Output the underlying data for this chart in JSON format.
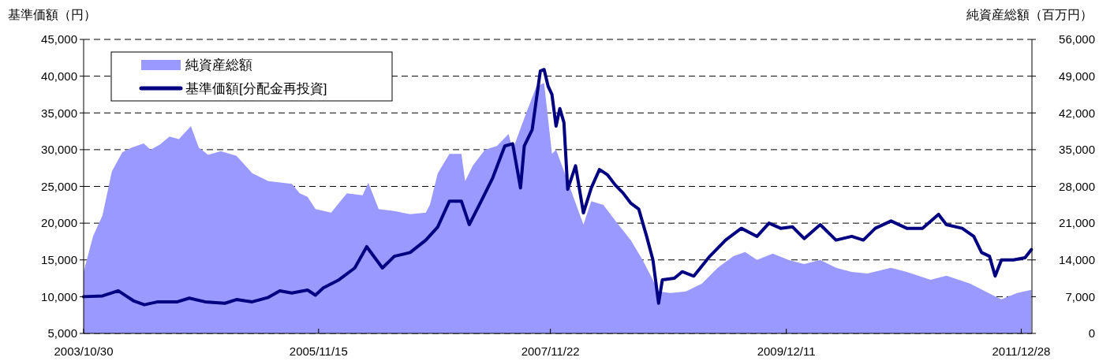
{
  "chart_data": {
    "type": "line",
    "ylabel": "基準価額（円）",
    "y2label": "純資産総額（百万円）",
    "xlim": [
      "2003-10-30",
      "2012-01-31"
    ],
    "xticks": [
      {
        "value": "2003-10-30",
        "label": "2003/10/30"
      },
      {
        "value": "2005-11-15",
        "label": "2005/11/15"
      },
      {
        "value": "2007-11-22",
        "label": "2007/11/22"
      },
      {
        "value": "2009-12-11",
        "label": "2009/12/11"
      },
      {
        "value": "2011-12-28",
        "label": "2011/12/28"
      }
    ],
    "ylim": [
      5000,
      45000
    ],
    "yticks": [
      {
        "value": 5000,
        "label": "5,000"
      },
      {
        "value": 10000,
        "label": "10,000"
      },
      {
        "value": 15000,
        "label": "15,000"
      },
      {
        "value": 20000,
        "label": "20,000"
      },
      {
        "value": 25000,
        "label": "25,000"
      },
      {
        "value": 30000,
        "label": "30,000"
      },
      {
        "value": 35000,
        "label": "35,000"
      },
      {
        "value": 40000,
        "label": "40,000"
      },
      {
        "value": 45000,
        "label": "45,000"
      }
    ],
    "y2lim": [
      0,
      56000
    ],
    "y2ticks": [
      0,
      {
        "value": 7000,
        "label": "7,000"
      },
      {
        "value": 14000,
        "label": "14,000"
      },
      {
        "value": 21000,
        "label": "21,000"
      },
      {
        "value": 28000,
        "label": "28,000"
      },
      {
        "value": 35000,
        "label": "35,000"
      },
      {
        "value": 42000,
        "label": "42,000"
      },
      {
        "value": 49000,
        "label": "49,000"
      },
      {
        "value": 56000,
        "label": "56,000"
      }
    ],
    "grid": "y",
    "legend": "top left",
    "series": [
      {
        "name": "純資産総額",
        "type": "area",
        "axis": "y2",
        "color": "#9999ff",
        "x": [
          "2003-10-30",
          "2003-11-29",
          "2003-12-29",
          "2004-01-28",
          "2004-03-01",
          "2004-03-31",
          "2004-05-08",
          "2004-05-30",
          "2004-06-29",
          "2004-07-29",
          "2004-08-28",
          "2004-10-05",
          "2004-10-30",
          "2004-11-29",
          "2005-01-08",
          "2005-02-27",
          "2005-04-18",
          "2005-06-08",
          "2005-08-22",
          "2005-09-16",
          "2005-10-11",
          "2005-11-05",
          "2005-12-25",
          "2006-02-13",
          "2006-04-04",
          "2006-04-22",
          "2006-05-25",
          "2006-07-14",
          "2006-09-02",
          "2006-10-22",
          "2006-11-04",
          "2006-11-29",
          "2007-01-05",
          "2007-02-12",
          "2007-02-24",
          "2007-03-21",
          "2007-04-28",
          "2007-06-05",
          "2007-07-12",
          "2007-07-25",
          "2007-08-31",
          "2007-10-08",
          "2007-11-02",
          "2007-11-27",
          "2007-12-10",
          "2008-01-16",
          "2008-03-06",
          "2008-03-31",
          "2008-05-08",
          "2008-06-15",
          "2008-08-04",
          "2008-09-10",
          "2008-10-06",
          "2008-10-31",
          "2008-12-07",
          "2009-01-26",
          "2009-03-18",
          "2009-05-07",
          "2009-06-26",
          "2009-08-02",
          "2009-09-09",
          "2009-10-29",
          "2009-12-18",
          "2010-02-06",
          "2010-03-29",
          "2010-05-18",
          "2010-07-07",
          "2010-08-26",
          "2010-11-09",
          "2010-12-29",
          "2011-03-15",
          "2011-05-04",
          "2011-07-18",
          "2011-10-01",
          "2011-10-26",
          "2011-12-15",
          "2012-01-29"
        ],
        "values": [
          11700,
          18500,
          22500,
          30900,
          34500,
          35400,
          36200,
          35000,
          36000,
          37500,
          37000,
          39500,
          35400,
          34000,
          34700,
          33800,
          30500,
          29000,
          28500,
          26700,
          26000,
          23700,
          23000,
          26700,
          26300,
          28700,
          23700,
          23300,
          22700,
          23000,
          24500,
          30500,
          34200,
          34200,
          29000,
          32000,
          35000,
          35700,
          38000,
          35000,
          41000,
          47000,
          47700,
          34200,
          35000,
          29000,
          20700,
          25200,
          24500,
          21500,
          17700,
          14000,
          11000,
          8000,
          7700,
          8000,
          9500,
          12500,
          14700,
          15500,
          14000,
          15200,
          14000,
          13200,
          14000,
          12500,
          11700,
          11400,
          12500,
          11700,
          10200,
          11000,
          9500,
          7200,
          6500,
          7700,
          8300
        ]
      },
      {
        "name": "基準価額[分配金再投資]",
        "color": "#000080",
        "x": [
          "2003-10-30",
          "2003-12-29",
          "2004-02-17",
          "2004-04-07",
          "2004-05-10",
          "2004-06-22",
          "2004-08-23",
          "2004-09-30",
          "2004-11-19",
          "2005-01-21",
          "2005-02-27",
          "2005-04-18",
          "2005-06-08",
          "2005-07-15",
          "2005-08-22",
          "2005-10-11",
          "2005-11-05",
          "2005-11-30",
          "2006-01-19",
          "2006-03-10",
          "2006-04-17",
          "2006-06-06",
          "2006-07-14",
          "2006-09-02",
          "2006-10-22",
          "2006-11-29",
          "2007-01-05",
          "2007-02-12",
          "2007-03-09",
          "2007-04-16",
          "2007-05-23",
          "2007-06-30",
          "2007-07-25",
          "2007-08-19",
          "2007-08-31",
          "2007-09-25",
          "2007-10-21",
          "2007-11-02",
          "2007-11-15",
          "2007-11-27",
          "2007-12-10",
          "2007-12-22",
          "2008-01-04",
          "2008-01-16",
          "2008-02-10",
          "2008-03-06",
          "2008-03-31",
          "2008-04-26",
          "2008-05-21",
          "2008-06-15",
          "2008-07-10",
          "2008-08-04",
          "2008-08-29",
          "2008-09-23",
          "2008-10-13",
          "2008-10-31",
          "2008-11-12",
          "2008-12-20",
          "2009-01-14",
          "2009-02-20",
          "2009-04-12",
          "2009-06-01",
          "2009-07-21",
          "2009-09-09",
          "2009-10-17",
          "2009-11-23",
          "2009-12-31",
          "2010-02-06",
          "2010-03-29",
          "2010-05-18",
          "2010-07-07",
          "2010-08-13",
          "2010-09-20",
          "2010-11-09",
          "2010-12-29",
          "2011-02-17",
          "2011-04-09",
          "2011-05-04",
          "2011-06-23",
          "2011-07-30",
          "2011-08-24",
          "2011-09-18",
          "2011-10-06",
          "2011-10-26",
          "2011-12-03",
          "2012-01-09",
          "2012-01-29"
        ],
        "values": [
          10000,
          10100,
          10800,
          9400,
          8900,
          9300,
          9300,
          9800,
          9300,
          9100,
          9600,
          9300,
          9900,
          10800,
          10500,
          10900,
          10200,
          11200,
          12300,
          13900,
          16800,
          13900,
          15500,
          16000,
          17700,
          19500,
          23000,
          23000,
          19800,
          23000,
          26200,
          30500,
          30800,
          24800,
          30500,
          32700,
          40700,
          40900,
          38600,
          37500,
          33200,
          35600,
          33700,
          24600,
          27800,
          21400,
          24800,
          27300,
          26600,
          25200,
          24100,
          22700,
          21900,
          18200,
          15000,
          9100,
          12300,
          12500,
          13400,
          12800,
          15500,
          17700,
          19300,
          18200,
          20000,
          19300,
          19500,
          17900,
          19800,
          17700,
          18200,
          17700,
          19300,
          20300,
          19300,
          19300,
          21200,
          19800,
          19300,
          18200,
          16000,
          15500,
          12800,
          15000,
          15000,
          15300,
          16400
        ]
      }
    ]
  }
}
